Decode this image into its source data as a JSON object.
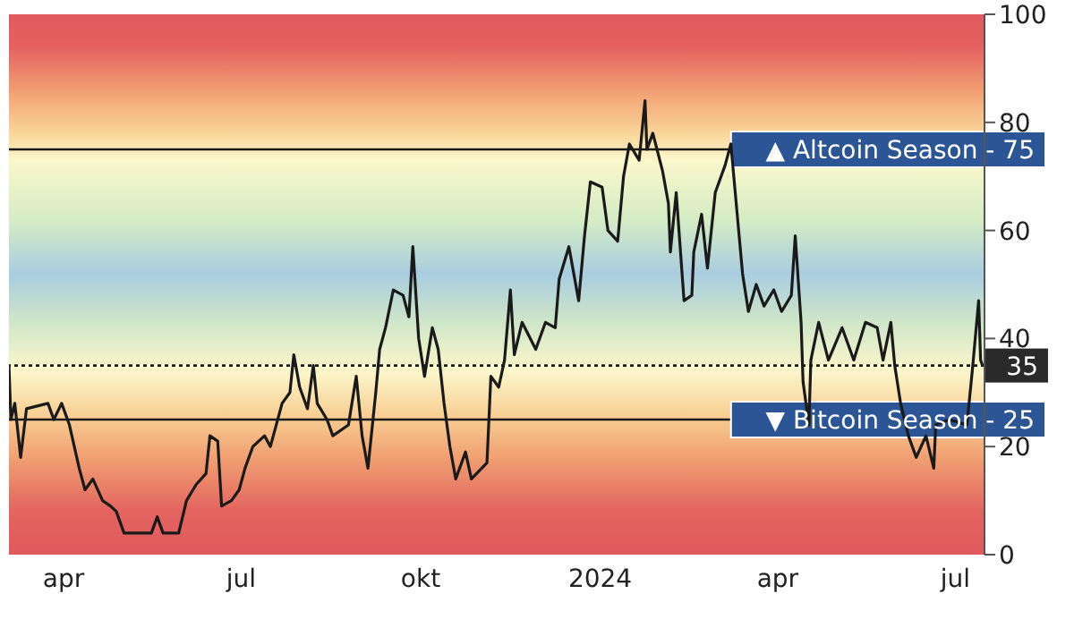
{
  "chart_data": {
    "type": "line",
    "x": [
      "2023-03-04",
      "2023-03-05",
      "2023-03-07",
      "2023-03-10",
      "2023-03-13",
      "2023-03-24",
      "2023-03-27",
      "2023-03-31",
      "2023-04-04",
      "2023-04-09",
      "2023-04-12",
      "2023-04-16",
      "2023-04-21",
      "2023-04-25",
      "2023-04-28",
      "2023-05-02",
      "2023-05-16",
      "2023-05-19",
      "2023-05-22",
      "2023-05-30",
      "2023-06-03",
      "2023-06-08",
      "2023-06-13",
      "2023-06-15",
      "2023-06-19",
      "2023-06-21",
      "2023-06-26",
      "2023-06-30",
      "2023-07-03",
      "2023-07-07",
      "2023-07-13",
      "2023-07-16",
      "2023-07-22",
      "2023-07-26",
      "2023-07-28",
      "2023-07-31",
      "2023-08-04",
      "2023-08-07",
      "2023-08-09",
      "2023-08-14",
      "2023-08-17",
      "2023-08-25",
      "2023-08-29",
      "2023-09-01",
      "2023-09-04",
      "2023-09-08",
      "2023-09-10",
      "2023-09-13",
      "2023-09-17",
      "2023-09-22",
      "2023-09-25",
      "2023-09-27",
      "2023-09-30",
      "2023-10-03",
      "2023-10-07",
      "2023-10-10",
      "2023-10-13",
      "2023-10-16",
      "2023-10-19",
      "2023-10-24",
      "2023-10-27",
      "2023-11-04",
      "2023-11-06",
      "2023-11-10",
      "2023-11-13",
      "2023-11-16",
      "2023-11-18",
      "2023-11-22",
      "2023-11-29",
      "2023-12-04",
      "2023-12-09",
      "2023-12-11",
      "2023-12-16",
      "2023-12-21",
      "2023-12-24",
      "2023-12-27",
      "2024-01-02",
      "2024-01-05",
      "2024-01-10",
      "2024-01-13",
      "2024-01-16",
      "2024-01-21",
      "2024-01-24",
      "2024-01-25",
      "2024-01-28",
      "2024-02-02",
      "2024-02-05",
      "2024-02-06",
      "2024-02-09",
      "2024-02-13",
      "2024-02-17",
      "2024-02-18",
      "2024-02-22",
      "2024-02-25",
      "2024-02-29",
      "2024-03-05",
      "2024-03-08",
      "2024-03-12",
      "2024-03-14",
      "2024-03-17",
      "2024-03-21",
      "2024-03-25",
      "2024-03-30",
      "2024-04-03",
      "2024-04-08",
      "2024-04-10",
      "2024-04-13",
      "2024-04-14",
      "2024-04-17",
      "2024-04-18",
      "2024-04-22",
      "2024-04-27",
      "2024-05-04",
      "2024-05-10",
      "2024-05-16",
      "2024-05-22",
      "2024-05-25",
      "2024-05-29",
      "2024-05-31",
      "2024-06-03",
      "2024-06-07",
      "2024-06-11",
      "2024-06-16",
      "2024-06-20",
      "2024-06-21",
      "2024-06-28",
      "2024-07-07",
      "2024-07-10",
      "2024-07-13",
      "2024-07-14",
      "2024-07-15"
    ],
    "series": [
      {
        "color": "#1a1a1a",
        "values": [
          35,
          25,
          28,
          18,
          27,
          28,
          25,
          28,
          24,
          16,
          12,
          14,
          10,
          9,
          8,
          4,
          4,
          7,
          4,
          4,
          10,
          13,
          15,
          22,
          21,
          9,
          10,
          12,
          16,
          20,
          22,
          20,
          28,
          30,
          37,
          31,
          27,
          35,
          28,
          25,
          22,
          24,
          33,
          22,
          16,
          30,
          38,
          42,
          49,
          48,
          44,
          57,
          40,
          33,
          42,
          38,
          28,
          20,
          14,
          19,
          14,
          17,
          33,
          31,
          36,
          49,
          37,
          43,
          38,
          43,
          42,
          51,
          57,
          47,
          59,
          69,
          68,
          60,
          58,
          70,
          76,
          73,
          84,
          75,
          78,
          71,
          65,
          56,
          67,
          47,
          48,
          56,
          63,
          53,
          67,
          72,
          76,
          60,
          52,
          45,
          50,
          46,
          49,
          45,
          48,
          59,
          43,
          32,
          24,
          36,
          43,
          36,
          42,
          36,
          43,
          42,
          36,
          43,
          35,
          28,
          22,
          18,
          22,
          16,
          24,
          25,
          24,
          35,
          47,
          36,
          35
        ]
      }
    ],
    "xlim": [
      "2023-03-04",
      "2024-07-16"
    ],
    "xticks": [
      {
        "value": "2023-04-01",
        "label": "apr"
      },
      {
        "value": "2023-07-01",
        "label": "jul"
      },
      {
        "value": "2023-10-01",
        "label": "okt"
      },
      {
        "value": "2024-01-01",
        "label": "2024"
      },
      {
        "value": "2024-04-01",
        "label": "apr"
      },
      {
        "value": "2024-07-01",
        "label": "jul"
      }
    ],
    "ylim": [
      0,
      100
    ],
    "yticks": [
      0,
      20,
      40,
      60,
      80,
      100
    ],
    "ref_lines": [
      {
        "axis": "y",
        "value": 75,
        "label": "▲ Altcoin Season - 75",
        "color": "#1a1a1a",
        "line_style": "solid"
      },
      {
        "axis": "y",
        "value": 35,
        "label": "35",
        "color": "#1a1a1a",
        "line_style": "dotted"
      },
      {
        "axis": "y",
        "value": 25,
        "label": "▼ Bitcoin Season - 25",
        "color": "#1a1a1a",
        "line_style": "solid"
      }
    ],
    "grid": false,
    "legend": false,
    "marker": "none",
    "line_style": "solid"
  }
}
